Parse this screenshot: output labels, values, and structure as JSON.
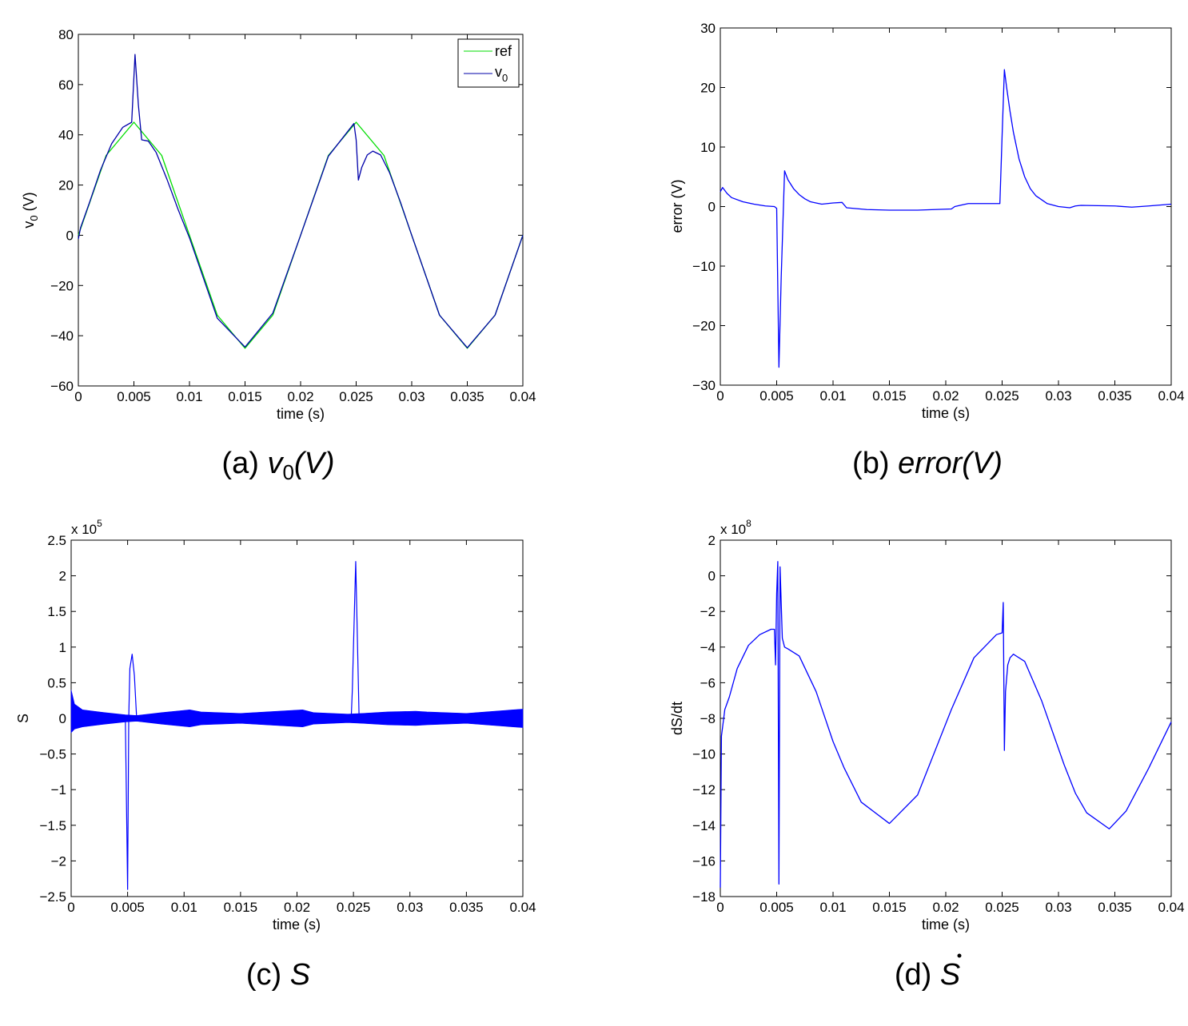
{
  "chart_data": [
    {
      "id": "a",
      "type": "line",
      "caption": "(a) v0(V)",
      "caption_prefix": "(a)",
      "caption_math": "v",
      "caption_sub": "0",
      "caption_suffix": "(V)",
      "xlabel": "time (s)",
      "ylabel": "v",
      "ylabel_sub": "0",
      "ylabel_suffix": " (V)",
      "xlim": [
        0,
        0.04
      ],
      "ylim": [
        -60,
        80
      ],
      "xticks": [
        0,
        0.005,
        0.01,
        0.015,
        0.02,
        0.025,
        0.03,
        0.035,
        0.04
      ],
      "xtick_labels": [
        "0",
        "0.005",
        "0.01",
        "0.015",
        "0.02",
        "0.025",
        "0.03",
        "0.035",
        "0.04"
      ],
      "yticks": [
        -60,
        -40,
        -20,
        0,
        20,
        40,
        60,
        80
      ],
      "ytick_labels": [
        "−60",
        "−40",
        "−20",
        "0",
        "20",
        "40",
        "60",
        "80"
      ],
      "legend_position": "top-right",
      "series": [
        {
          "name": "ref",
          "color": "#00dd00",
          "x": [
            0,
            0.0025,
            0.005,
            0.0075,
            0.01,
            0.0125,
            0.015,
            0.0175,
            0.02,
            0.0225,
            0.025,
            0.0275,
            0.03,
            0.0325,
            0.035,
            0.0375,
            0.04
          ],
          "y": [
            0,
            31.8,
            45,
            31.8,
            0,
            -31.8,
            -45,
            -31.8,
            0,
            31.8,
            45,
            31.8,
            0,
            -31.8,
            -45,
            -31.8,
            0
          ]
        },
        {
          "name": "v",
          "name_sub": "0",
          "color": "#0000aa",
          "x": [
            0,
            0.0002,
            0.001,
            0.002,
            0.003,
            0.004,
            0.0048,
            0.0051,
            0.0054,
            0.0057,
            0.0063,
            0.007,
            0.008,
            0.009,
            0.01,
            0.0125,
            0.015,
            0.0175,
            0.02,
            0.0225,
            0.0248,
            0.025,
            0.0252,
            0.0255,
            0.026,
            0.0265,
            0.0272,
            0.028,
            0.029,
            0.03,
            0.0325,
            0.035,
            0.0375,
            0.04
          ],
          "y": [
            -1.5,
            3,
            13,
            26,
            36.5,
            43,
            45,
            72,
            52,
            38,
            37.5,
            33,
            22,
            10,
            -1,
            -33,
            -44.5,
            -31,
            0,
            31.5,
            44.5,
            38,
            22,
            27,
            32,
            33.5,
            32,
            25,
            13,
            0,
            -31.8,
            -44.8,
            -31.8,
            0
          ]
        }
      ]
    },
    {
      "id": "b",
      "type": "line",
      "caption": "(b) error(V)",
      "caption_prefix": "(b)",
      "caption_math": "error",
      "caption_suffix": "(V)",
      "xlabel": "time (s)",
      "ylabel": "error (V)",
      "xlim": [
        0,
        0.04
      ],
      "ylim": [
        -30,
        30
      ],
      "xticks": [
        0,
        0.005,
        0.01,
        0.015,
        0.02,
        0.025,
        0.03,
        0.035,
        0.04
      ],
      "xtick_labels": [
        "0",
        "0.005",
        "0.01",
        "0.015",
        "0.02",
        "0.025",
        "0.03",
        "0.035",
        "0.04"
      ],
      "yticks": [
        -30,
        -20,
        -10,
        0,
        10,
        20,
        30
      ],
      "ytick_labels": [
        "−30",
        "−20",
        "−10",
        "0",
        "10",
        "20",
        "30"
      ],
      "series": [
        {
          "color": "#0000ff",
          "x": [
            0,
            0.0002,
            0.0006,
            0.001,
            0.002,
            0.003,
            0.004,
            0.0048,
            0.005,
            0.0052,
            0.0054,
            0.0057,
            0.006,
            0.0065,
            0.007,
            0.0075,
            0.008,
            0.009,
            0.01,
            0.0108,
            0.0112,
            0.013,
            0.015,
            0.0175,
            0.0205,
            0.0208,
            0.0215,
            0.022,
            0.0248,
            0.025,
            0.0252,
            0.0254,
            0.0257,
            0.026,
            0.0265,
            0.027,
            0.0275,
            0.028,
            0.029,
            0.03,
            0.031,
            0.0315,
            0.032,
            0.035,
            0.0365,
            0.038,
            0.04
          ],
          "y": [
            2.5,
            3.2,
            2.2,
            1.5,
            0.8,
            0.4,
            0.1,
            0,
            -0.3,
            -27,
            -12,
            6,
            4.5,
            3,
            2,
            1.3,
            0.8,
            0.4,
            0.6,
            0.7,
            -0.2,
            -0.5,
            -0.6,
            -0.6,
            -0.4,
            0,
            0.3,
            0.5,
            0.5,
            12,
            23,
            20,
            16,
            12.5,
            8,
            5,
            3,
            1.8,
            0.5,
            0,
            -0.2,
            0.1,
            0.2,
            0.1,
            -0.1,
            0.1,
            0.4
          ]
        }
      ]
    },
    {
      "id": "c",
      "type": "line",
      "caption": "(c) S",
      "caption_prefix": "(c)",
      "caption_math": "S",
      "xlabel": "time (s)",
      "ylabel": "S",
      "multiplier_label": "x 10",
      "multiplier_exp": "5",
      "xlim": [
        0,
        0.04
      ],
      "ylim": [
        -2.5,
        2.5
      ],
      "xticks": [
        0,
        0.005,
        0.01,
        0.015,
        0.02,
        0.025,
        0.03,
        0.035,
        0.04
      ],
      "xtick_labels": [
        "0",
        "0.005",
        "0.01",
        "0.015",
        "0.02",
        "0.025",
        "0.03",
        "0.035",
        "0.04"
      ],
      "yticks": [
        -2.5,
        -2,
        -1.5,
        -1,
        -0.5,
        0,
        0.5,
        1,
        1.5,
        2,
        2.5
      ],
      "ytick_labels": [
        "−2.5",
        "−2",
        "−1.5",
        "−1",
        "−0.5",
        "0",
        "0.5",
        "1",
        "1.5",
        "2",
        "2.5"
      ],
      "band": {
        "color": "#0000ff",
        "x": [
          0,
          0.0003,
          0.001,
          0.003,
          0.0048,
          0.0058,
          0.008,
          0.0105,
          0.0115,
          0.015,
          0.0205,
          0.0215,
          0.0245,
          0.0258,
          0.028,
          0.0305,
          0.0315,
          0.035,
          0.04
        ],
        "upper": [
          0.4,
          0.2,
          0.12,
          0.08,
          0.05,
          0.04,
          0.08,
          0.12,
          0.09,
          0.07,
          0.12,
          0.08,
          0.06,
          0.07,
          0.09,
          0.1,
          0.09,
          0.07,
          0.13
        ],
        "lower": [
          -0.2,
          -0.15,
          -0.12,
          -0.08,
          -0.05,
          -0.04,
          -0.08,
          -0.12,
          -0.09,
          -0.07,
          -0.12,
          -0.08,
          -0.06,
          -0.07,
          -0.09,
          -0.1,
          -0.09,
          -0.07,
          -0.13
        ]
      },
      "spikes": [
        {
          "color": "#0000ff",
          "x": [
            0.0048,
            0.005,
            0.0051,
            0.0052,
            0.0054,
            0.0056,
            0.0058
          ],
          "y": [
            0,
            -2.4,
            0,
            0.7,
            0.9,
            0.6,
            0
          ]
        },
        {
          "color": "#0000ff",
          "x": [
            0.0248,
            0.0249,
            0.0252,
            0.0255
          ],
          "y": [
            0,
            0.4,
            2.2,
            0
          ]
        }
      ]
    },
    {
      "id": "d",
      "type": "line",
      "caption": "(d) Ṡ",
      "caption_prefix": "(d)",
      "caption_math": "S",
      "caption_dot": true,
      "xlabel": "time (s)",
      "ylabel": "dS/dt",
      "multiplier_label": "x 10",
      "multiplier_exp": "8",
      "xlim": [
        0,
        0.04
      ],
      "ylim": [
        -18,
        2
      ],
      "xticks": [
        0,
        0.005,
        0.01,
        0.015,
        0.02,
        0.025,
        0.03,
        0.035,
        0.04
      ],
      "xtick_labels": [
        "0",
        "0.005",
        "0.01",
        "0.015",
        "0.02",
        "0.025",
        "0.03",
        "0.035",
        "0.04"
      ],
      "yticks": [
        -18,
        -16,
        -14,
        -12,
        -10,
        -8,
        -6,
        -4,
        -2,
        0,
        2
      ],
      "ytick_labels": [
        "−18",
        "−16",
        "−14",
        "−12",
        "−10",
        "−8",
        "−6",
        "−4",
        "−2",
        "0",
        "2"
      ],
      "series": [
        {
          "color": "#0000ff",
          "x": [
            0,
            0.0001,
            0.0002,
            0.0004,
            0.0008,
            0.0015,
            0.0025,
            0.0035,
            0.0045,
            0.0048,
            0.0049,
            0.005,
            0.0051,
            0.0052,
            0.0053,
            0.0054,
            0.0055,
            0.0057,
            0.006,
            0.007,
            0.0085,
            0.01,
            0.011,
            0.0125,
            0.015,
            0.0175,
            0.0205,
            0.0225,
            0.0245,
            0.025,
            0.0251,
            0.0252,
            0.0253,
            0.0255,
            0.0257,
            0.026,
            0.027,
            0.0285,
            0.0305,
            0.0315,
            0.0325,
            0.0345,
            0.036,
            0.038,
            0.04
          ],
          "y": [
            -17.5,
            -9,
            -8.5,
            -7.5,
            -6.8,
            -5.2,
            -3.9,
            -3.3,
            -3,
            -3,
            -5,
            -1,
            0.8,
            -17.3,
            0.5,
            -1.5,
            -3.5,
            -4,
            -4.1,
            -4.5,
            -6.5,
            -9.3,
            -10.8,
            -12.7,
            -13.9,
            -12.3,
            -7.5,
            -4.6,
            -3.3,
            -3.2,
            -1.5,
            -9.8,
            -6.5,
            -5,
            -4.6,
            -4.4,
            -4.8,
            -7,
            -10.6,
            -12.2,
            -13.3,
            -14.2,
            -13.2,
            -10.8,
            -8.2
          ]
        }
      ]
    }
  ]
}
